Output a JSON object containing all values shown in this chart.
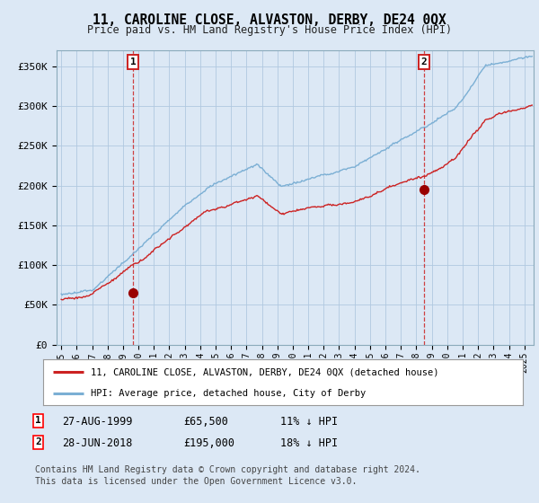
{
  "title": "11, CAROLINE CLOSE, ALVASTON, DERBY, DE24 0QX",
  "subtitle": "Price paid vs. HM Land Registry's House Price Index (HPI)",
  "ylabel_ticks": [
    "£0",
    "£50K",
    "£100K",
    "£150K",
    "£200K",
    "£250K",
    "£300K",
    "£350K"
  ],
  "ytick_values": [
    0,
    50000,
    100000,
    150000,
    200000,
    250000,
    300000,
    350000
  ],
  "ylim": [
    0,
    370000
  ],
  "xlim_start": 1994.7,
  "xlim_end": 2025.6,
  "red_line_color": "#cc2222",
  "blue_line_color": "#7bafd4",
  "marker_color": "#990000",
  "sale1_year": 1999.65,
  "sale1_price": 65500,
  "sale1_label": "1",
  "sale1_date": "27-AUG-1999",
  "sale1_pct": "11% ↓ HPI",
  "sale2_year": 2018.49,
  "sale2_price": 195000,
  "sale2_label": "2",
  "sale2_date": "28-JUN-2018",
  "sale2_pct": "18% ↓ HPI",
  "legend_line1": "11, CAROLINE CLOSE, ALVASTON, DERBY, DE24 0QX (detached house)",
  "legend_line2": "HPI: Average price, detached house, City of Derby",
  "footnote": "Contains HM Land Registry data © Crown copyright and database right 2024.\nThis data is licensed under the Open Government Licence v3.0.",
  "bg_color": "#dce8f5",
  "plot_bg": "#dce8f5",
  "legend_bg": "#ffffff",
  "grid_color": "#b0c8e0"
}
